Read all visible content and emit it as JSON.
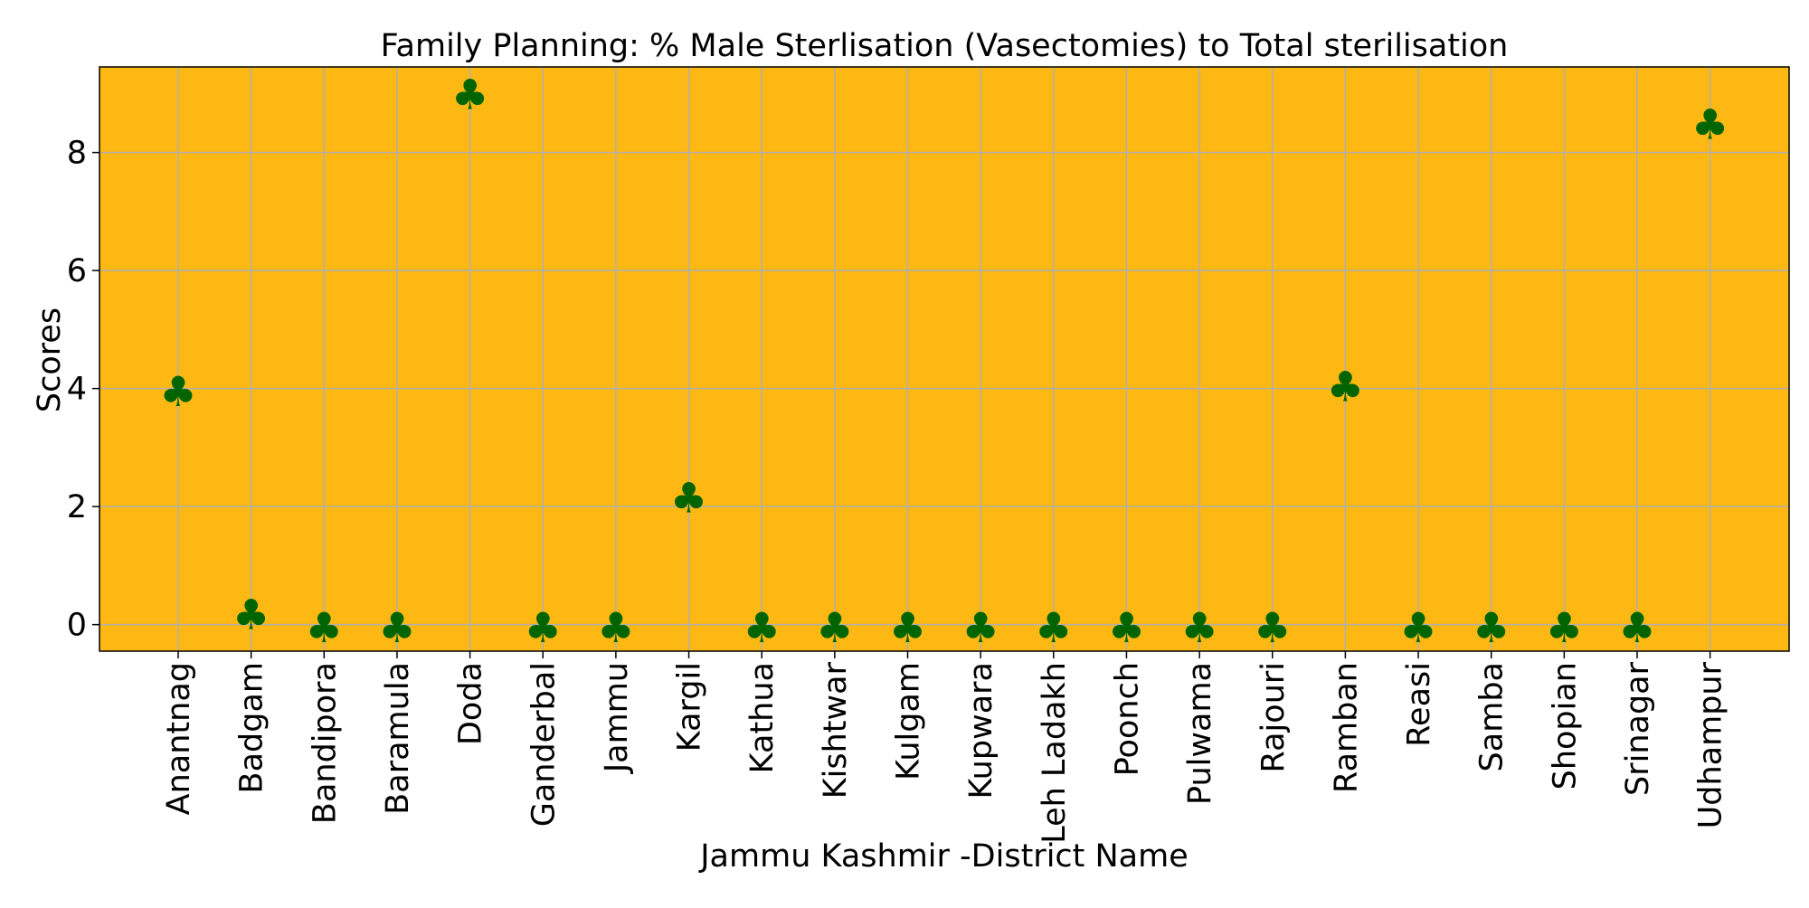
{
  "chart_data": {
    "type": "scatter",
    "title": "Family Planning: % Male Sterlisation (Vasectomies) to Total sterilisation",
    "xlabel": "Jammu Kashmir -District Name",
    "ylabel": "Scores",
    "marker": "club-icon",
    "marker_glyph": "♣",
    "categories": [
      "Anantnag",
      "Badgam",
      "Bandipora",
      "Baramula",
      "Doda",
      "Ganderbal",
      "Jammu",
      "Kargil",
      "Kathua",
      "Kishtwar",
      "Kulgam",
      "Kupwara",
      "Leh Ladakh",
      "Poonch",
      "Pulwama",
      "Rajouri",
      "Ramban",
      "Reasi",
      "Samba",
      "Shopian",
      "Srinagar",
      "Udhampur"
    ],
    "values": [
      3.95,
      0.17,
      -0.05,
      -0.05,
      8.98,
      -0.05,
      -0.05,
      2.15,
      -0.05,
      -0.05,
      -0.05,
      -0.05,
      -0.05,
      -0.05,
      -0.05,
      -0.05,
      4.03,
      -0.05,
      -0.05,
      -0.05,
      -0.05,
      8.48
    ],
    "ylim": [
      -0.45,
      9.45
    ],
    "yticks": [
      0,
      2,
      4,
      6,
      8
    ],
    "grid": true,
    "colors": {
      "plot_background": "#fdb813",
      "marker": "#006400",
      "grid": "#b0b0b0",
      "axes": "#000000"
    }
  }
}
